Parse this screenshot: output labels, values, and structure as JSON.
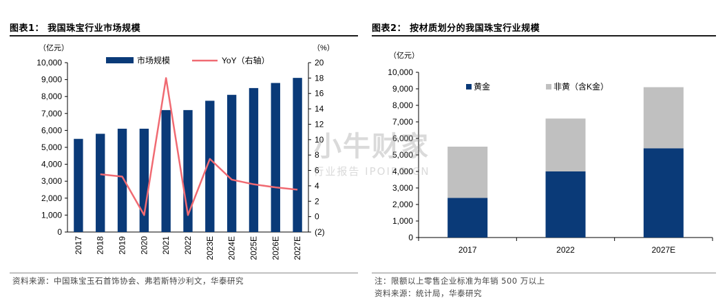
{
  "left": {
    "title": "图表1： 我国珠宝行业市场规模",
    "source": "资料来源：中国珠宝玉石首饰协会、弗若斯特沙利文，华泰研究"
  },
  "right": {
    "title": "图表2： 按材质划分的我国珠宝行业规模",
    "note": "注：限额以上零售企业标准为年销 500 万以上",
    "source": "资料来源：统计局，华泰研究"
  },
  "watermark": {
    "main": "小牛财家",
    "sub": "行业报告 IPOIPO.CN"
  },
  "chart_data": [
    {
      "type": "bar",
      "categories": [
        "2017",
        "2018",
        "2019",
        "2020",
        "2021",
        "2022",
        "2023E",
        "2024E",
        "2025E",
        "2026E",
        "2027E"
      ],
      "series": [
        {
          "name": "市场规模",
          "type": "bar",
          "axis": "left",
          "color": "#0a3a78",
          "values": [
            5500,
            5800,
            6100,
            6100,
            7200,
            7200,
            7750,
            8100,
            8500,
            8800,
            9100
          ]
        },
        {
          "name": "YoY（右轴）",
          "type": "line",
          "axis": "right",
          "color": "#f06a72",
          "values": [
            null,
            5.5,
            5.2,
            0.2,
            18.0,
            0.2,
            7.5,
            4.8,
            4.2,
            3.8,
            3.5
          ]
        }
      ],
      "ylabel_left": "（亿元）",
      "ylabel_right": "（%）",
      "ylim": [
        0,
        10000
      ],
      "yticks_left": [
        "10,000",
        "9,000",
        "8,000",
        "7,000",
        "6,000",
        "5,000",
        "4,000",
        "3,000",
        "2,000",
        "1,000",
        "0"
      ],
      "ylim_right": [
        -2,
        20
      ],
      "yticks_right": [
        "20",
        "18",
        "16",
        "14",
        "12",
        "10",
        "8",
        "6",
        "4",
        "2",
        "0",
        "(2)"
      ],
      "legend": "top",
      "grid": false
    },
    {
      "type": "bar",
      "stacked": true,
      "categories": [
        "2017",
        "2022",
        "2027E"
      ],
      "series": [
        {
          "name": "黄金",
          "color": "#0a3a78",
          "values": [
            2400,
            4000,
            5400
          ]
        },
        {
          "name": "非黄（含K金）",
          "color": "#c0c0c0",
          "values": [
            3100,
            3200,
            3700
          ]
        }
      ],
      "ylabel": "（亿元）",
      "ylim": [
        0,
        10000
      ],
      "yticks": [
        "10,000",
        "9,000",
        "8,000",
        "7,000",
        "6,000",
        "5,000",
        "4,000",
        "3,000",
        "2,000",
        "1,000",
        "0"
      ],
      "legend": "top",
      "grid": false
    }
  ]
}
